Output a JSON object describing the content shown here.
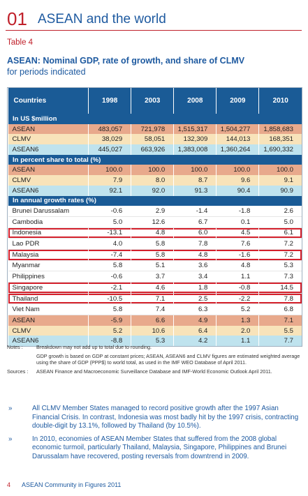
{
  "header": {
    "number": "01",
    "title": "ASEAN and the world"
  },
  "table_label": "Table 4",
  "table_title": "ASEAN: Nominal GDP, rate of growth, and share of CLMV",
  "table_subtitle": "for periods indicated",
  "columns": [
    "Countries",
    "1998",
    "2003",
    "2008",
    "2009",
    "2010"
  ],
  "sections": [
    {
      "title": "In US $million",
      "rows": [
        {
          "name": "ASEAN",
          "style": "asean",
          "values": [
            "483,057",
            "721,978",
            "1,515,317",
            "1,504,277",
            "1,858,683"
          ]
        },
        {
          "name": "CLMV",
          "style": "clmv",
          "values": [
            "38,029",
            "58,051",
            "132,309",
            "144,013",
            "168,351"
          ]
        },
        {
          "name": "ASEAN6",
          "style": "asean6",
          "values": [
            "445,027",
            "663,926",
            "1,383,008",
            "1,360,264",
            "1,690,332"
          ]
        }
      ]
    },
    {
      "title": "In percent share to total (%)",
      "rows": [
        {
          "name": "ASEAN",
          "style": "asean",
          "values": [
            "100.0",
            "100.0",
            "100.0",
            "100.0",
            "100.0"
          ]
        },
        {
          "name": "CLMV",
          "style": "clmv",
          "values": [
            "7.9",
            "8.0",
            "8.7",
            "9.6",
            "9.1"
          ]
        },
        {
          "name": "ASEAN6",
          "style": "asean6",
          "values": [
            "92.1",
            "92.0",
            "91.3",
            "90.4",
            "90.9"
          ]
        }
      ]
    },
    {
      "title": "In annual growth rates (%)",
      "rows": [
        {
          "name": "Brunei Darussalam",
          "style": "plain",
          "values": [
            "-0.6",
            "2.9",
            "-1.4",
            "-1.8",
            "2.6"
          ]
        },
        {
          "name": "Cambodia",
          "style": "plain",
          "values": [
            "5.0",
            "12.6",
            "6.7",
            "0.1",
            "5.0"
          ]
        },
        {
          "name": "Indonesia",
          "style": "plain",
          "highlight": true,
          "values": [
            "-13.1",
            "4.8",
            "6.0",
            "4.5",
            "6.1"
          ]
        },
        {
          "name": "Lao PDR",
          "style": "plain",
          "values": [
            "4.0",
            "5.8",
            "7.8",
            "7.6",
            "7.2"
          ]
        },
        {
          "name": "Malaysia",
          "style": "plain",
          "highlight": true,
          "values": [
            "-7.4",
            "5.8",
            "4.8",
            "-1.6",
            "7.2"
          ]
        },
        {
          "name": "Myanmar",
          "style": "plain",
          "values": [
            "5.8",
            "5.1",
            "3.6",
            "4.8",
            "5.3"
          ]
        },
        {
          "name": "Philippines",
          "style": "plain",
          "values": [
            "-0.6",
            "3.7",
            "3.4",
            "1.1",
            "7.3"
          ]
        },
        {
          "name": "Singapore",
          "style": "plain",
          "highlight": true,
          "values": [
            "-2.1",
            "4.6",
            "1.8",
            "-0.8",
            "14.5"
          ]
        },
        {
          "name": "Thailand",
          "style": "plain",
          "highlight": true,
          "values": [
            "-10.5",
            "7.1",
            "2.5",
            "-2.2",
            "7.8"
          ]
        },
        {
          "name": "Viet Nam",
          "style": "plain",
          "values": [
            "5.8",
            "7.4",
            "6.3",
            "5.2",
            "6.8"
          ]
        },
        {
          "name": "ASEAN",
          "style": "asean",
          "values": [
            "-5.9",
            "6.6",
            "4.9",
            "1.3",
            "7.1"
          ]
        },
        {
          "name": "CLMV",
          "style": "clmv",
          "values": [
            "5.2",
            "10.6",
            "6.4",
            "2.0",
            "5.5"
          ]
        },
        {
          "name": "ASEAN6",
          "style": "asean6",
          "values": [
            "-8.8",
            "5.3",
            "4.2",
            "1.1",
            "7.7"
          ]
        }
      ]
    }
  ],
  "notes": {
    "notes_label": "Notes",
    "notes_sep": ":",
    "note1": "Breakdown may not add up to total due to rounding.",
    "note2": "GDP growth is based on GDP at constant prices; ASEAN, ASEAN6 and CLMV figures are estimated weighted average using the share of GDP (PPP$) to world total, as used in the IMF WEO Database of April 2011.",
    "sources_label": "Sources",
    "sources_sep": ":",
    "sources": "ASEAN Finance and Macroeconomic Surveillance Database and IMF-World Economic Outlook April 2011."
  },
  "bullets": [
    {
      "marker": "»",
      "text": "All CLMV Member States managed to record positive growth after the 1997 Asian Financial Crisis. In contrast, Indonesia was most badly hit by the 1997 crisis, contracting double-digit by 13.1%, followed by Thailand (by 10.5%)."
    },
    {
      "marker": "»",
      "text": "In 2010, economies of ASEAN Member States that suffered from the 2008 global economic turmoil, particularly Thailand, Malaysia, Singapore, Philippines and Brunei Darussalam have recovered, posting reversals from downtrend in 2009."
    }
  ],
  "footer": {
    "page": "4",
    "publication": "ASEAN Community in Figures 2011"
  },
  "colors": {
    "accent_red": "#c0202a",
    "brand_blue": "#1a5b96",
    "asean_row": "#e8a98c",
    "clmv_row": "#f8e3ba",
    "asean6_row": "#bfe3ee",
    "highlight_box": "#d4202c"
  }
}
